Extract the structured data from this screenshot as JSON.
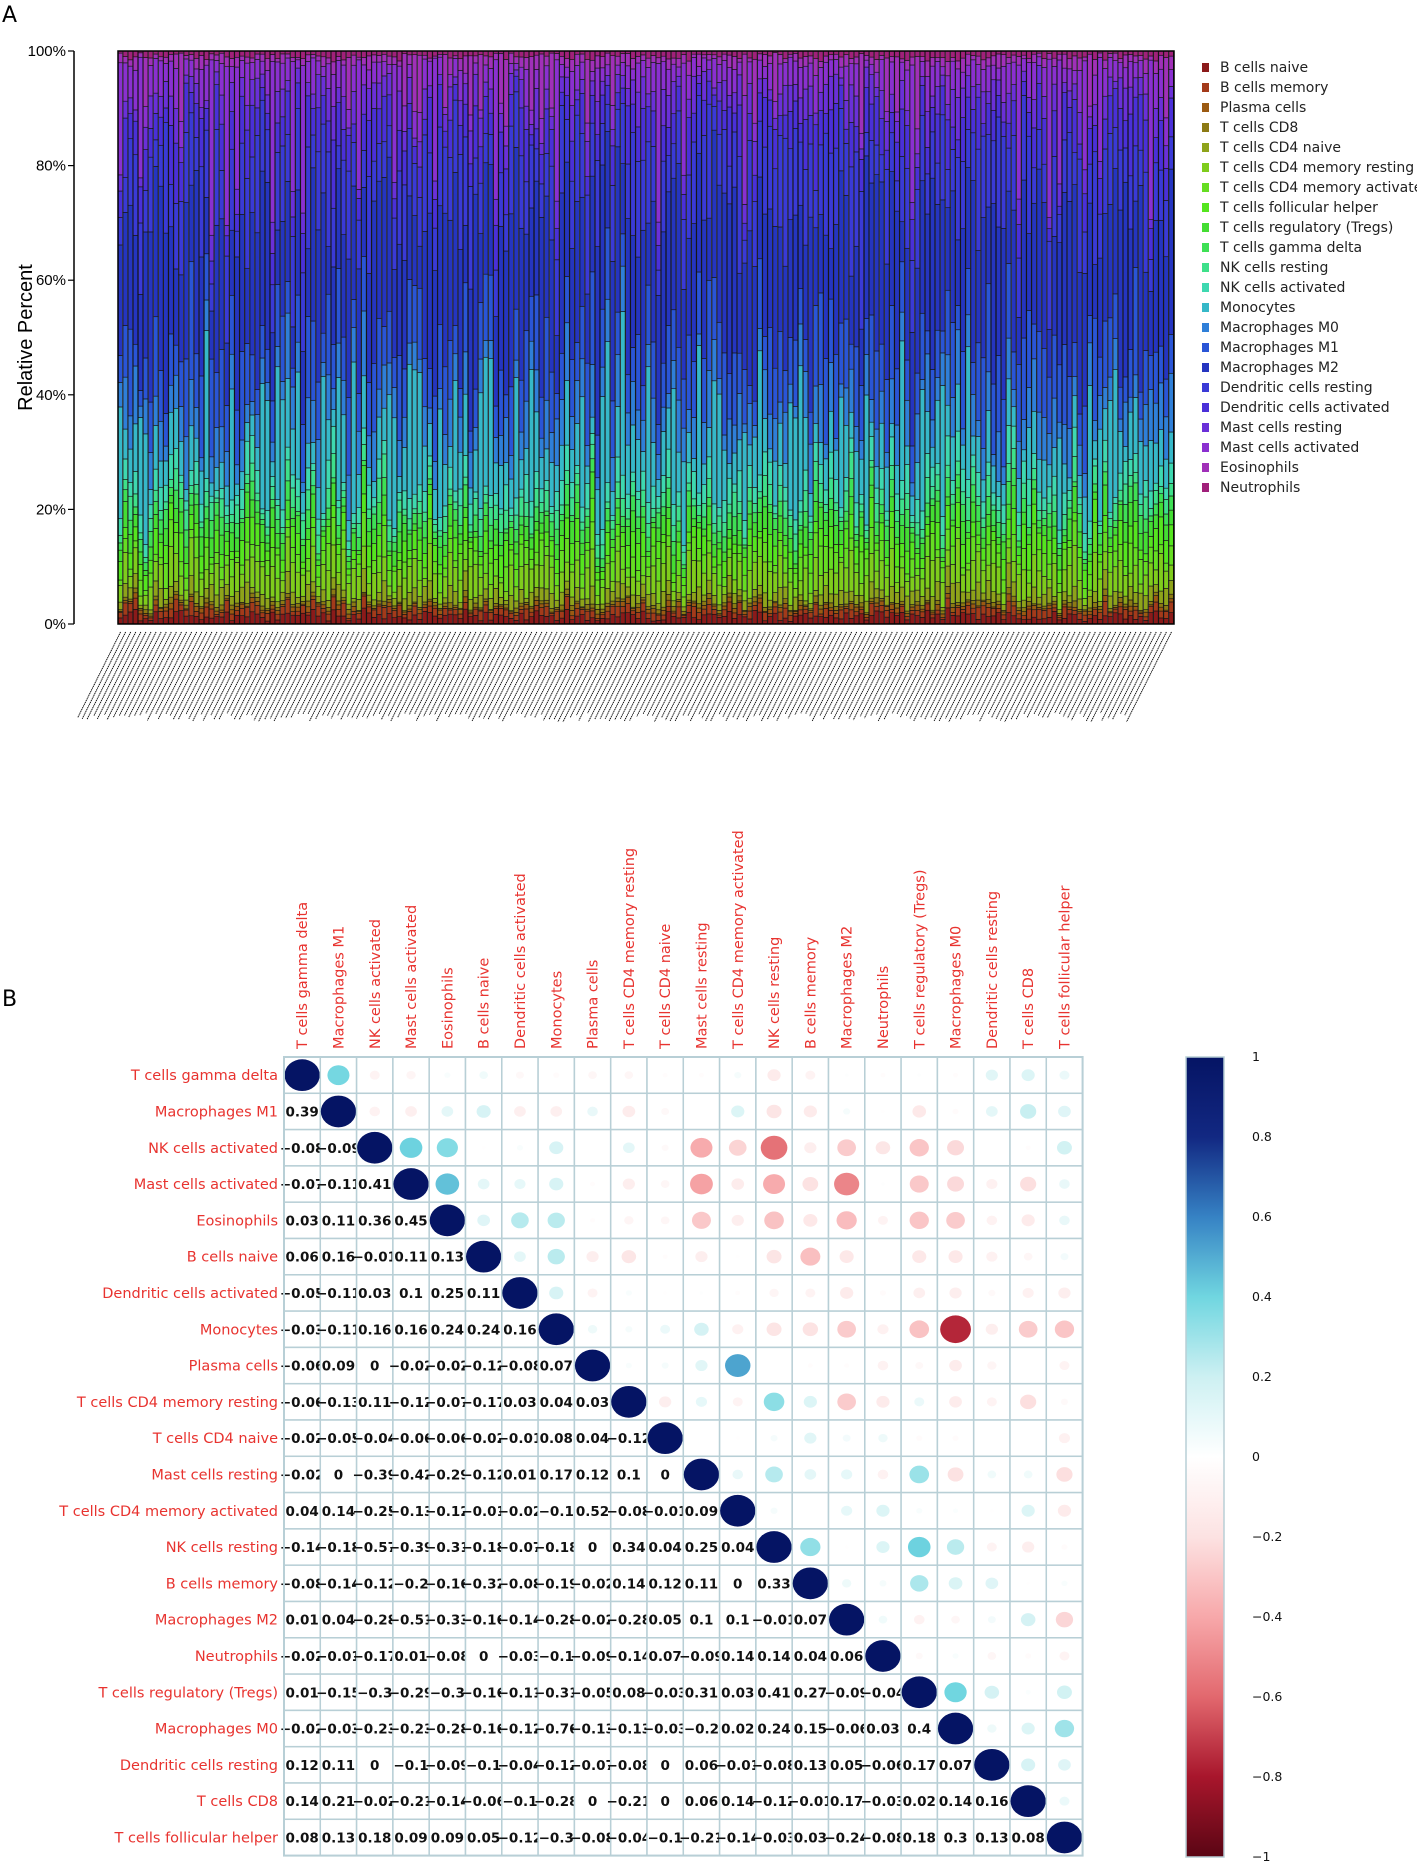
{
  "panels": {
    "a_label": "A",
    "b_label": "B"
  },
  "chart_data": [
    {
      "type": "bar",
      "subtype": "stacked-100",
      "ylabel": "Relative Percent",
      "y_ticks": [
        "0%",
        "20%",
        "40%",
        "60%",
        "80%",
        "100%"
      ],
      "ylim": [
        0,
        100
      ],
      "sample_count": 208,
      "legend": {
        "position": "right"
      },
      "series": [
        {
          "name": "B cells naive",
          "color": "#8b1a1a"
        },
        {
          "name": "B cells memory",
          "color": "#a33a1a"
        },
        {
          "name": "Plasma cells",
          "color": "#9b5a12"
        },
        {
          "name": "T cells CD8",
          "color": "#8c7a14"
        },
        {
          "name": "T cells CD4 naive",
          "color": "#8ea31a"
        },
        {
          "name": "T cells CD4 memory resting",
          "color": "#7fcc1c"
        },
        {
          "name": "T cells CD4 memory activated",
          "color": "#66dd22"
        },
        {
          "name": "T cells follicular helper",
          "color": "#55e51f"
        },
        {
          "name": "T cells regulatory (Tregs)",
          "color": "#44dd33"
        },
        {
          "name": "T cells gamma delta",
          "color": "#3ee055"
        },
        {
          "name": "NK cells resting",
          "color": "#3ee08a"
        },
        {
          "name": "NK cells activated",
          "color": "#3ed8b0"
        },
        {
          "name": "Monocytes",
          "color": "#36b8c8"
        },
        {
          "name": "Macrophages M0",
          "color": "#2f7fd8"
        },
        {
          "name": "Macrophages M1",
          "color": "#2a55d6"
        },
        {
          "name": "Macrophages M2",
          "color": "#2535c0"
        },
        {
          "name": "Dendritic cells resting",
          "color": "#3a3ad6"
        },
        {
          "name": "Dendritic cells activated",
          "color": "#4a30d8"
        },
        {
          "name": "Mast cells resting",
          "color": "#6a30d8"
        },
        {
          "name": "Mast cells activated",
          "color": "#8a30d0"
        },
        {
          "name": "Eosinophils",
          "color": "#a030b8"
        },
        {
          "name": "Neutrophils",
          "color": "#a0207a"
        }
      ]
    },
    {
      "type": "heatmap",
      "subtype": "correlation-matrix",
      "labels": [
        "T cells gamma delta",
        "Macrophages M1",
        "NK cells activated",
        "Mast cells activated",
        "Eosinophils",
        "B cells naive",
        "Dendritic cells activated",
        "Monocytes",
        "Plasma cells",
        "T cells CD4 memory resting",
        "T cells CD4 naive",
        "Mast cells resting",
        "T cells CD4 memory activated",
        "NK cells resting",
        "B cells memory",
        "Macrophages M2",
        "Neutrophils",
        "T cells regulatory (Tregs)",
        "Macrophages M0",
        "Dendritic cells resting",
        "T cells CD8",
        "T cells follicular helper"
      ],
      "matrix": [
        [
          1,
          0.39,
          -0.08,
          -0.07,
          0.03,
          0.06,
          -0.05,
          -0.03,
          -0.06,
          -0.06,
          -0.02,
          -0.02,
          0.04,
          -0.14,
          -0.08,
          0.01,
          -0.02,
          0.01,
          -0.02,
          0.12,
          0.14,
          0.08
        ],
        [
          0.39,
          1,
          -0.09,
          -0.11,
          0.11,
          0.16,
          -0.11,
          -0.11,
          0.09,
          -0.13,
          -0.05,
          0,
          0.14,
          -0.18,
          -0.14,
          0.04,
          -0.01,
          -0.15,
          -0.03,
          0.11,
          0.21,
          0.13
        ],
        [
          -0.08,
          -0.09,
          1,
          0.41,
          0.36,
          -0.01,
          0.03,
          0.16,
          0,
          0.11,
          -0.04,
          -0.39,
          -0.25,
          -0.57,
          -0.12,
          -0.28,
          -0.17,
          -0.3,
          -0.23,
          0,
          -0.02,
          0.18
        ],
        [
          -0.07,
          -0.11,
          0.41,
          1,
          0.45,
          0.11,
          0.1,
          0.16,
          -0.02,
          -0.12,
          -0.06,
          -0.42,
          -0.13,
          -0.39,
          -0.2,
          -0.51,
          0.01,
          -0.29,
          -0.23,
          -0.1,
          -0.21,
          0.09
        ],
        [
          0.03,
          0.11,
          0.36,
          0.45,
          1,
          0.13,
          0.25,
          0.24,
          -0.02,
          -0.07,
          -0.06,
          -0.29,
          -0.12,
          -0.31,
          -0.16,
          -0.33,
          -0.08,
          -0.3,
          -0.28,
          -0.09,
          -0.14,
          0.09
        ],
        [
          0.06,
          0.16,
          -0.01,
          0.11,
          0.13,
          1,
          0.11,
          0.24,
          -0.12,
          -0.17,
          -0.02,
          -0.12,
          -0.01,
          -0.18,
          -0.32,
          -0.16,
          0,
          -0.16,
          -0.16,
          -0.1,
          -0.06,
          0.05
        ],
        [
          -0.05,
          -0.11,
          0.03,
          0.1,
          0.25,
          0.11,
          1,
          0.16,
          -0.08,
          0.03,
          -0.01,
          0.01,
          -0.02,
          -0.07,
          -0.08,
          -0.14,
          -0.03,
          -0.11,
          -0.12,
          -0.04,
          -0.1,
          -0.12
        ],
        [
          -0.03,
          -0.11,
          0.16,
          0.16,
          0.24,
          0.24,
          0.16,
          1,
          0.07,
          0.04,
          0.08,
          0.17,
          -0.1,
          -0.18,
          -0.19,
          -0.28,
          -0.1,
          -0.31,
          -0.76,
          -0.12,
          -0.28,
          -0.3
        ],
        [
          -0.06,
          0.09,
          0,
          -0.02,
          -0.02,
          -0.12,
          -0.08,
          0.07,
          1,
          0.03,
          0.04,
          0.12,
          0.52,
          0,
          -0.02,
          -0.02,
          -0.09,
          -0.05,
          -0.13,
          -0.07,
          0,
          -0.08
        ],
        [
          -0.06,
          -0.13,
          0.11,
          -0.12,
          -0.07,
          -0.17,
          0.03,
          0.04,
          0.03,
          1,
          -0.12,
          0.1,
          -0.08,
          0.34,
          0.14,
          -0.28,
          -0.14,
          0.08,
          -0.13,
          -0.08,
          -0.21,
          -0.04
        ],
        [
          -0.02,
          -0.05,
          -0.04,
          -0.06,
          -0.06,
          -0.02,
          -0.01,
          0.08,
          0.04,
          -0.12,
          1,
          0,
          -0.01,
          0.04,
          0.12,
          0.05,
          0.07,
          -0.03,
          -0.03,
          0,
          0,
          -0.1
        ],
        [
          -0.02,
          0,
          -0.39,
          -0.42,
          -0.29,
          -0.12,
          0.01,
          0.17,
          0.12,
          0.1,
          0,
          1,
          0.09,
          0.25,
          0.11,
          0.1,
          -0.09,
          0.31,
          -0.2,
          0.06,
          0.06,
          -0.21
        ],
        [
          0.04,
          0.14,
          -0.25,
          -0.13,
          -0.12,
          -0.01,
          -0.02,
          -0.1,
          0.52,
          -0.08,
          -0.01,
          0.09,
          1,
          0.04,
          0,
          0.1,
          0.14,
          0.03,
          0.02,
          -0.01,
          0.14,
          -0.14
        ],
        [
          -0.14,
          -0.18,
          -0.57,
          -0.39,
          -0.31,
          -0.18,
          -0.07,
          -0.18,
          0,
          0.34,
          0.04,
          0.25,
          0.04,
          1,
          0.33,
          -0.01,
          0.14,
          0.41,
          0.24,
          -0.08,
          -0.12,
          -0.03
        ],
        [
          -0.08,
          -0.14,
          -0.12,
          -0.2,
          -0.16,
          -0.32,
          -0.08,
          -0.19,
          -0.02,
          0.14,
          0.12,
          0.11,
          0,
          0.33,
          1,
          0.07,
          0.04,
          0.27,
          0.15,
          0.13,
          -0.01,
          0.03
        ],
        [
          0.01,
          0.04,
          -0.28,
          -0.51,
          -0.33,
          -0.16,
          -0.14,
          -0.28,
          -0.02,
          -0.28,
          0.05,
          0.1,
          0.1,
          -0.01,
          0.07,
          1,
          0.06,
          -0.09,
          -0.06,
          0.05,
          0.17,
          -0.24
        ],
        [
          -0.02,
          -0.01,
          -0.17,
          0.01,
          -0.08,
          0,
          -0.03,
          -0.1,
          -0.09,
          -0.14,
          0.07,
          -0.09,
          0.14,
          0.14,
          0.04,
          0.06,
          1,
          -0.04,
          0.03,
          -0.06,
          -0.03,
          -0.08
        ],
        [
          0.01,
          -0.15,
          -0.3,
          -0.29,
          -0.3,
          -0.16,
          -0.11,
          -0.31,
          -0.05,
          0.08,
          -0.03,
          0.31,
          0.03,
          0.41,
          0.27,
          -0.09,
          -0.04,
          1,
          0.4,
          0.17,
          0.02,
          0.18
        ],
        [
          -0.02,
          -0.03,
          -0.23,
          -0.23,
          -0.28,
          -0.16,
          -0.12,
          -0.76,
          -0.13,
          -0.13,
          -0.03,
          -0.2,
          0.02,
          0.24,
          0.15,
          -0.06,
          0.03,
          0.4,
          1,
          0.07,
          0.14,
          0.3
        ],
        [
          0.12,
          0.11,
          0,
          -0.1,
          -0.09,
          -0.1,
          -0.04,
          -0.12,
          -0.07,
          -0.08,
          0,
          0.06,
          -0.01,
          -0.08,
          0.13,
          0.05,
          -0.06,
          0.17,
          0.07,
          1,
          0.16,
          0.13
        ],
        [
          0.14,
          0.21,
          -0.02,
          -0.21,
          -0.14,
          -0.06,
          -0.1,
          -0.28,
          0,
          -0.21,
          0,
          0.06,
          0.14,
          -0.12,
          -0.01,
          0.17,
          -0.03,
          0.02,
          0.14,
          0.16,
          1,
          0.08
        ],
        [
          0.08,
          0.13,
          0.18,
          0.09,
          0.09,
          0.05,
          -0.12,
          -0.3,
          -0.08,
          -0.04,
          -0.1,
          -0.21,
          -0.14,
          -0.03,
          0.03,
          -0.24,
          -0.08,
          0.18,
          0.3,
          0.13,
          0.08,
          1
        ]
      ],
      "colorbar_ticks": [
        "1",
        "0.8",
        "0.6",
        "0.4",
        "0.2",
        "0",
        "−0.2",
        "−0.4",
        "−0.6",
        "−0.8",
        "−1"
      ],
      "label_color": "#e8332f"
    }
  ]
}
